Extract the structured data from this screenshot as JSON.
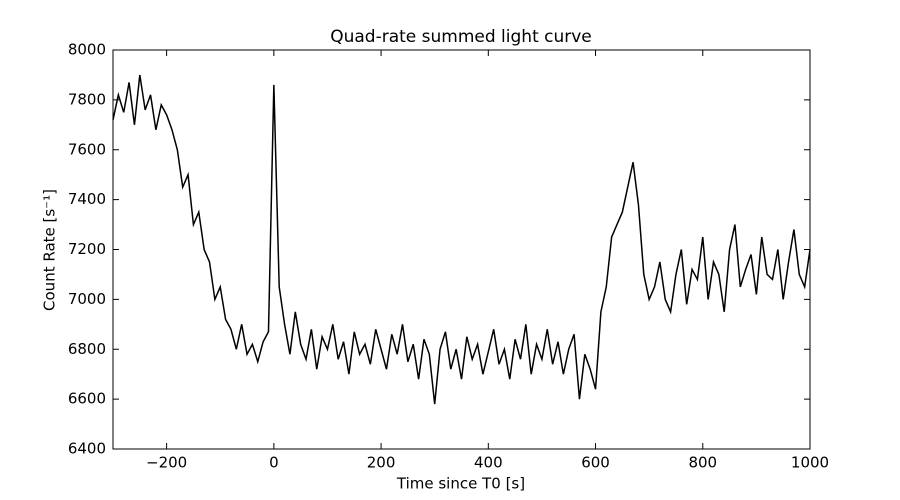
{
  "chart_data": {
    "type": "line",
    "title": "Quad-rate summed light curve",
    "x_label": "Time since T0 [s]",
    "y_label": "Count Rate [s⁻¹]",
    "x": [
      -300,
      -290,
      -280,
      -270,
      -260,
      -250,
      -240,
      -230,
      -220,
      -210,
      -200,
      -190,
      -180,
      -170,
      -160,
      -150,
      -140,
      -130,
      -120,
      -110,
      -100,
      -90,
      -80,
      -70,
      -60,
      -50,
      -40,
      -30,
      -20,
      -10,
      0,
      10,
      20,
      30,
      40,
      50,
      60,
      70,
      80,
      90,
      100,
      110,
      120,
      130,
      140,
      150,
      160,
      170,
      180,
      190,
      200,
      210,
      220,
      230,
      240,
      250,
      260,
      270,
      280,
      290,
      300,
      310,
      320,
      330,
      340,
      350,
      360,
      370,
      380,
      390,
      400,
      410,
      420,
      430,
      440,
      450,
      460,
      470,
      480,
      490,
      500,
      510,
      520,
      530,
      540,
      550,
      560,
      570,
      580,
      590,
      600,
      610,
      620,
      630,
      640,
      650,
      660,
      670,
      680,
      690,
      700,
      710,
      720,
      730,
      740,
      750,
      760,
      770,
      780,
      790,
      800,
      810,
      820,
      830,
      840,
      850,
      860,
      870,
      880,
      890,
      900,
      910,
      920,
      930,
      940,
      950,
      960,
      970,
      980,
      990,
      1000
    ],
    "series": [
      {
        "color": "#000000",
        "values": [
          7720,
          7820,
          7750,
          7870,
          7700,
          7900,
          7760,
          7820,
          7680,
          7780,
          7740,
          7680,
          7600,
          7450,
          7500,
          7300,
          7350,
          7200,
          7150,
          7000,
          7050,
          6920,
          6880,
          6800,
          6900,
          6780,
          6820,
          6750,
          6830,
          6870,
          7860,
          7050,
          6900,
          6780,
          6950,
          6820,
          6760,
          6880,
          6720,
          6850,
          6800,
          6900,
          6760,
          6830,
          6700,
          6870,
          6780,
          6820,
          6740,
          6880,
          6800,
          6720,
          6860,
          6780,
          6900,
          6750,
          6820,
          6680,
          6840,
          6780,
          6580,
          6800,
          6870,
          6720,
          6800,
          6680,
          6850,
          6760,
          6820,
          6700,
          6790,
          6880,
          6740,
          6800,
          6680,
          6840,
          6760,
          6900,
          6700,
          6820,
          6760,
          6880,
          6740,
          6830,
          6700,
          6800,
          6860,
          6600,
          6780,
          6720,
          6640,
          6950,
          7050,
          7250,
          7300,
          7350,
          7450,
          7550,
          7380,
          7100,
          7000,
          7050,
          7150,
          7000,
          6950,
          7100,
          7200,
          6980,
          7120,
          7080,
          7250,
          7000,
          7150,
          7100,
          6950,
          7200,
          7300,
          7050,
          7120,
          7180,
          7020,
          7250,
          7100,
          7080,
          7200,
          7000,
          7150,
          7280,
          7100,
          7050,
          7200
        ]
      }
    ],
    "xlim": [
      -300,
      1000
    ],
    "xticks": [
      {
        "value": -200,
        "label": "−200"
      },
      0,
      200,
      400,
      600,
      800,
      1000
    ],
    "ylim": [
      6400,
      8000
    ],
    "yticks": [
      6400,
      6600,
      6800,
      7000,
      7200,
      7400,
      7600,
      7800,
      8000
    ]
  }
}
